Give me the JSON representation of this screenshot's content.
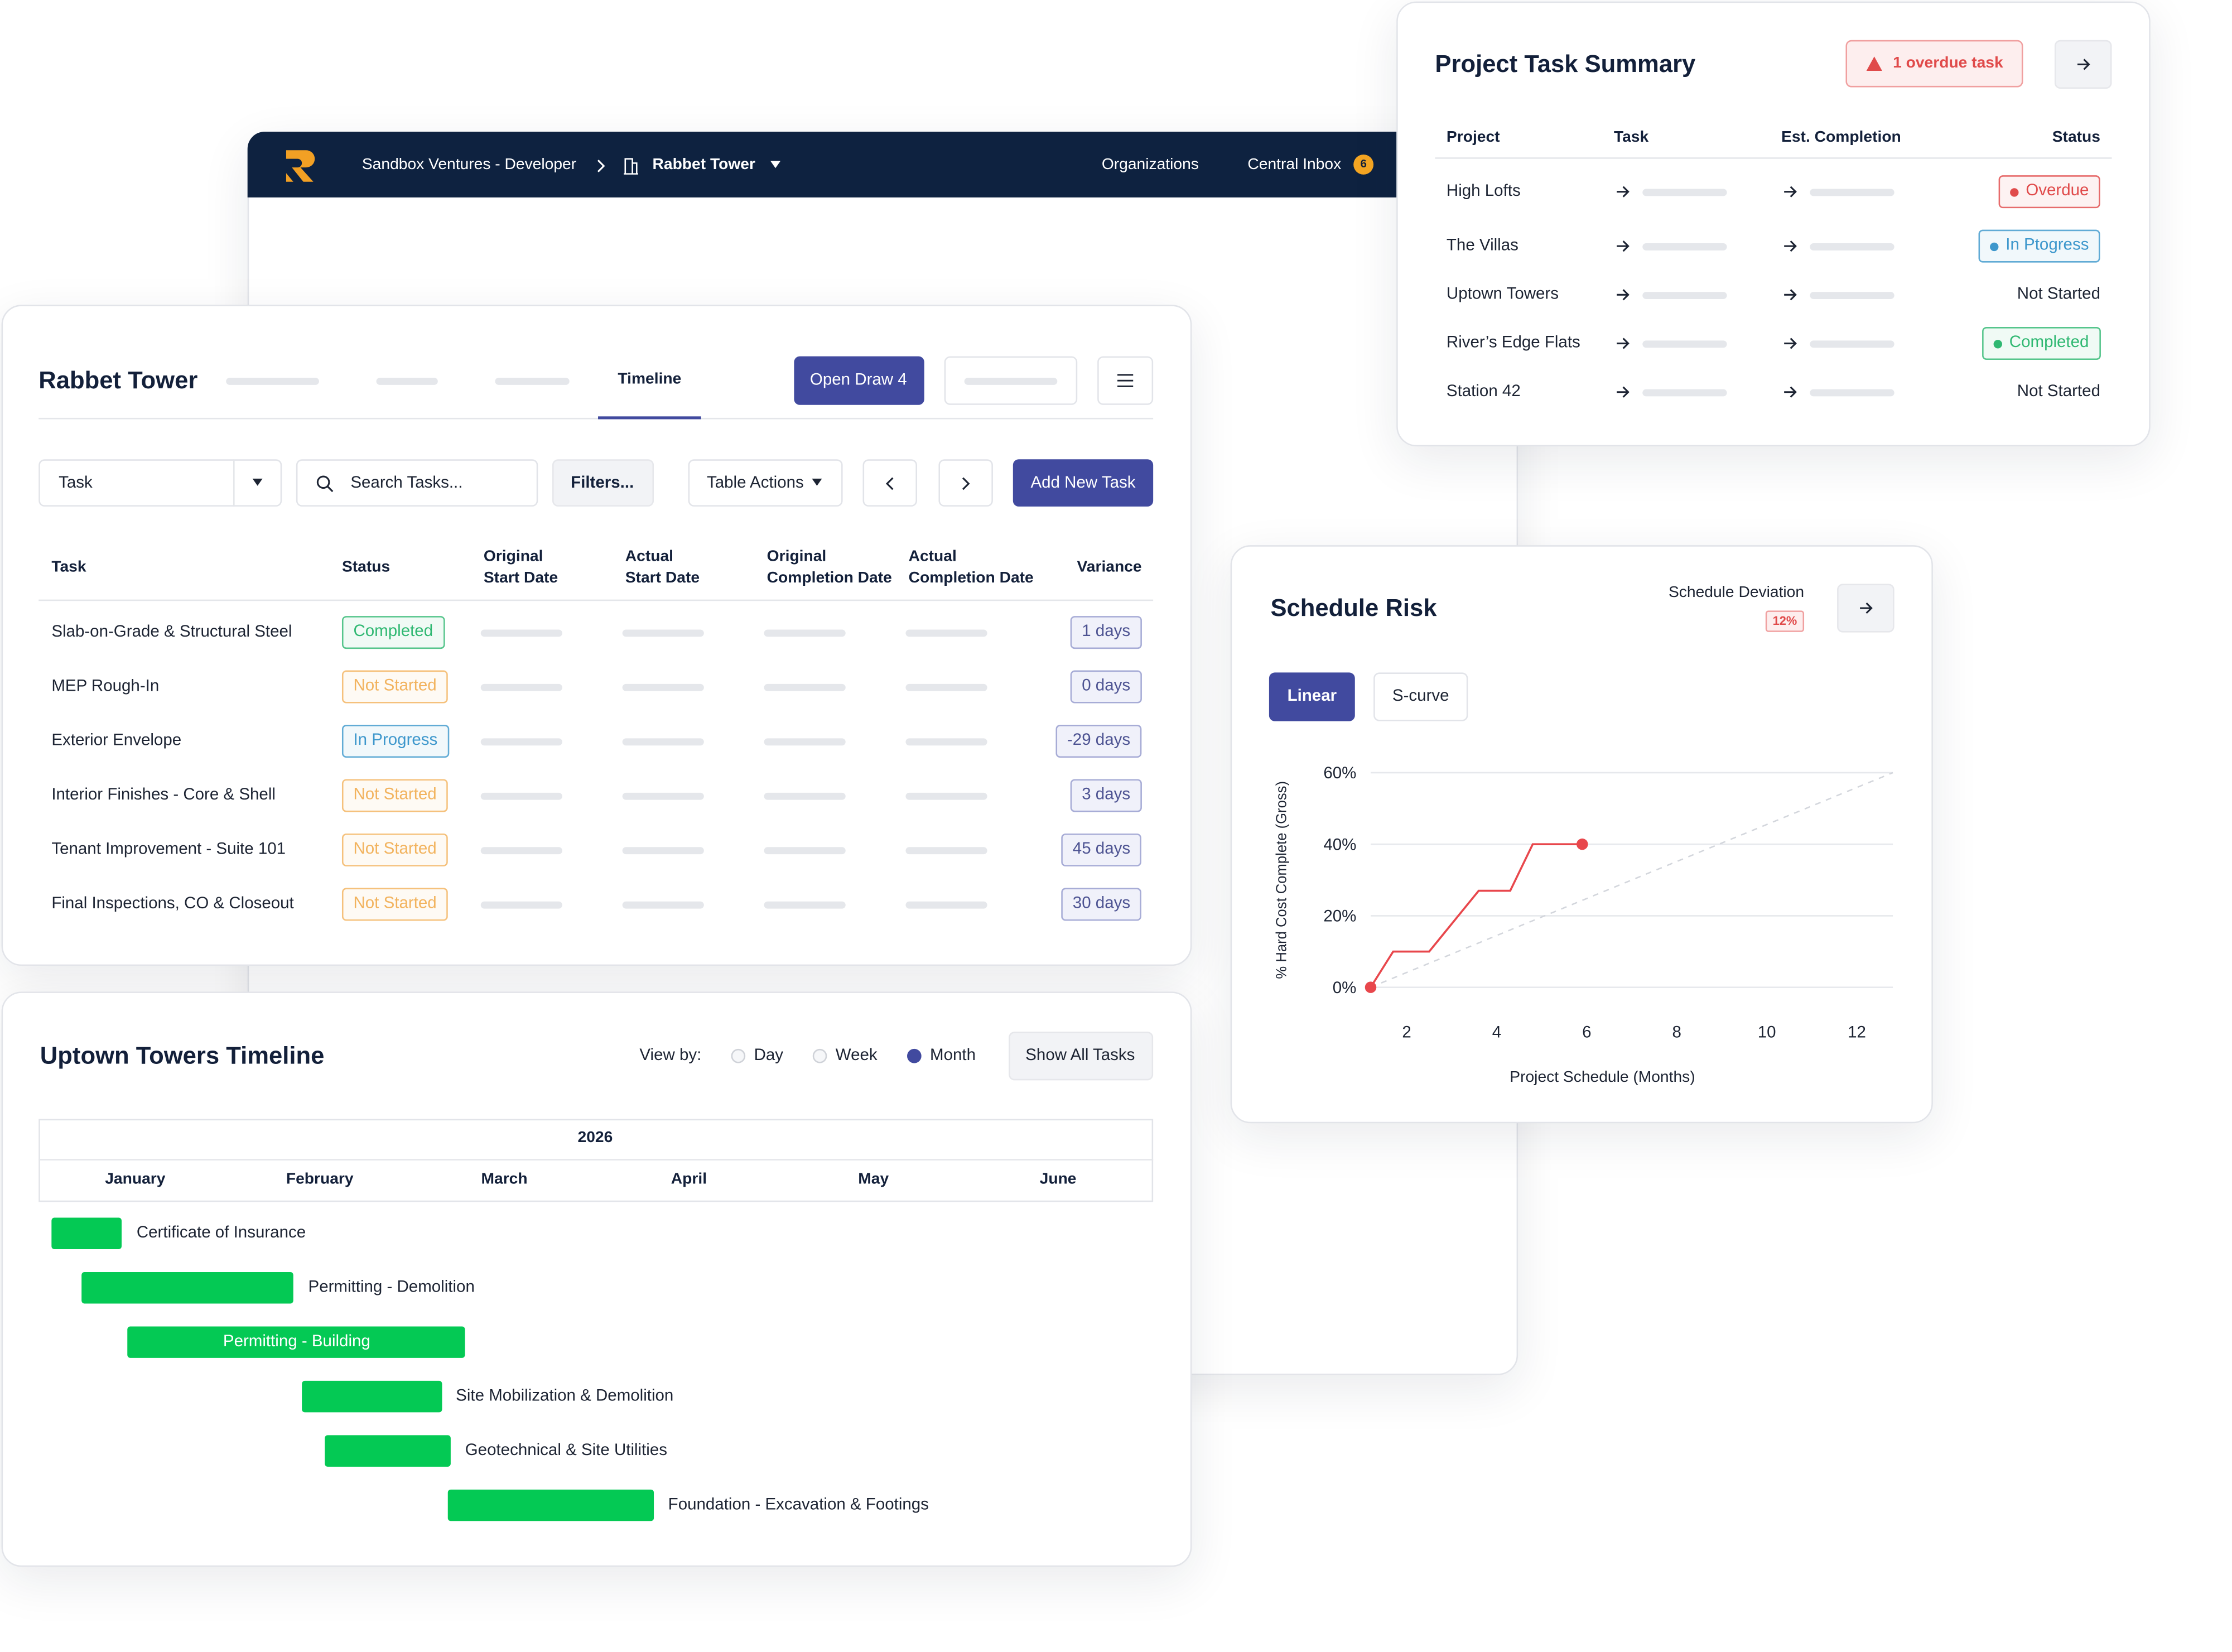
{
  "nav": {
    "breadcrumb": "Sandbox Ventures - Developer",
    "project": "Rabbet Tower",
    "links": [
      "Organizations",
      "Central Inbox"
    ],
    "inbox_count": "6"
  },
  "tasks_panel": {
    "title": "Rabbet Tower",
    "tab": "Timeline",
    "open_draw": "Open Draw 4",
    "filter_select": "Task",
    "search_placeholder": "Search Tasks...",
    "filters": "Filters...",
    "table_actions": "Table Actions",
    "add_task": "Add New Task",
    "columns": [
      "Task",
      "Status",
      "Original\nStart Date",
      "Actual\nStart Date",
      "Original\nCompletion Date",
      "Actual\nCompletion Date",
      "Variance"
    ],
    "rows": [
      {
        "task": "Slab-on-Grade & Structural Steel",
        "status": "Completed",
        "color": "#2fb872",
        "variance": "1 days"
      },
      {
        "task": "MEP Rough-In",
        "status": "Not Started",
        "color": "#f2b35e",
        "variance": "0 days"
      },
      {
        "task": "Exterior Envelope",
        "status": "In Progress",
        "color": "#3d97cc",
        "variance": "-29 days"
      },
      {
        "task": "Interior Finishes - Core & Shell",
        "status": "Not Started",
        "color": "#f2b35e",
        "variance": "3 days"
      },
      {
        "task": "Tenant Improvement - Suite 101",
        "status": "Not Started",
        "color": "#f2b35e",
        "variance": "45 days"
      },
      {
        "task": "Final Inspections, CO & Closeout",
        "status": "Not Started",
        "color": "#f2b35e",
        "variance": "30 days"
      }
    ]
  },
  "timeline": {
    "title": "Uptown Towers Timeline",
    "view_by": "View by:",
    "views": [
      "Day",
      "Week",
      "Month"
    ],
    "selected_view": "Month",
    "show_all": "Show All Tasks",
    "year": "2026",
    "months": [
      "January",
      "February",
      "March",
      "April",
      "May",
      "June"
    ],
    "bar_color": "#04c954",
    "tasks": [
      {
        "name": "Certificate of Insurance",
        "start": 0.05,
        "end": 0.43
      },
      {
        "name": "Permitting - Demolition",
        "start": 0.21,
        "end": 1.36
      },
      {
        "name": "Permitting - Building",
        "start": 0.46,
        "end": 2.29
      },
      {
        "name": "Site Mobilization & Demolition",
        "start": 1.4,
        "end": 2.16
      },
      {
        "name": "Geotechnical & Site Utilities",
        "start": 1.53,
        "end": 2.21
      },
      {
        "name": "Foundation - Excavation & Footings",
        "start": 2.19,
        "end": 3.31
      }
    ]
  },
  "summary": {
    "title": "Project Task Summary",
    "alert": "1 overdue task",
    "columns": [
      "Project",
      "Task",
      "Est. Completion",
      "Status"
    ],
    "rows": [
      {
        "project": "High Lofts",
        "status": "Overdue",
        "color": "#e04a4a"
      },
      {
        "project": "The Villas",
        "status": "In Ptogress",
        "color": "#3d97cc"
      },
      {
        "project": "Uptown Towers",
        "status": "Not Started",
        "color": null
      },
      {
        "project": "River’s Edge Flats",
        "status": "Completed",
        "color": "#2fb872"
      },
      {
        "project": "Station 42",
        "status": "Not Started",
        "color": null
      }
    ]
  },
  "schedule": {
    "title": "Schedule Risk",
    "deviation_label": "Schedule Deviation",
    "deviation": "12%",
    "modes": [
      "Linear",
      "S-curve"
    ]
  },
  "chart_data": {
    "type": "line",
    "x_label": "Project Schedule (Months)",
    "y_label": "% Hard Cost Complete (Gross)",
    "xlim": [
      1.2,
      12.8
    ],
    "ylim": [
      0,
      60
    ],
    "xticks": [
      2,
      4,
      6,
      8,
      10,
      12
    ],
    "yticks": [
      {
        "value": 0,
        "label": "0%"
      },
      {
        "value": 20,
        "label": "20%"
      },
      {
        "value": 40,
        "label": "40%"
      },
      {
        "value": 60,
        "label": "60%"
      }
    ],
    "grid": true,
    "series": [
      {
        "color": "#e8474c",
        "endpoint_markers": true,
        "x": [
          1.2,
          1.7,
          2.5,
          3.6,
          4.3,
          4.8,
          5.9
        ],
        "values": [
          0,
          10,
          10,
          27,
          27,
          40,
          40
        ]
      },
      {
        "color": "#d3d6dc",
        "dashed": true,
        "x": [
          1.2,
          12.8
        ],
        "values": [
          0,
          60
        ]
      }
    ]
  }
}
